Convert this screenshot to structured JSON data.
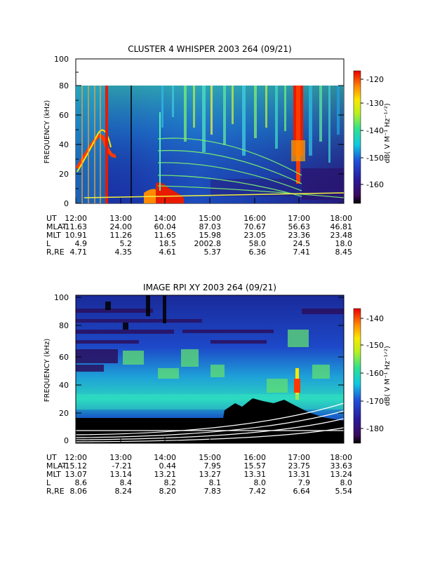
{
  "chart_data": [
    {
      "type": "heatmap",
      "title": "CLUSTER 4 WHISPER 2003 264 (09/21)",
      "ylabel": "FREQUENCY (kHz)",
      "ylim": [
        0,
        100
      ],
      "yticks": [
        "0",
        "20",
        "40",
        "60",
        "80",
        "100"
      ],
      "xticks": [
        "12:00",
        "13:00",
        "14:00",
        "15:00",
        "16:00",
        "17:00",
        "18:00"
      ],
      "colorbar": {
        "label": "dB( V M⁻¹ Hz⁻¹ᐟ²)",
        "range": [
          -165,
          -118
        ],
        "ticks": [
          "-120",
          "-130",
          "-140",
          "-150",
          "-160"
        ]
      },
      "ephemeris": [
        {
          "label": "UT",
          "values": [
            "12:00",
            "13:00",
            "14:00",
            "15:00",
            "16:00",
            "17:00",
            "18:00"
          ]
        },
        {
          "label": "MLAT",
          "values": [
            "-11.63",
            "24.00",
            "60.04",
            "87.03",
            "70.67",
            "56.63",
            "46.81"
          ]
        },
        {
          "label": "MLT",
          "values": [
            "10.91",
            "11.26",
            "11.65",
            "15.98",
            "23.05",
            "23.36",
            "23.48"
          ]
        },
        {
          "label": "L",
          "values": [
            "4.9",
            "5.2",
            "18.5",
            "2002.8",
            "58.0",
            "24.5",
            "18.0"
          ]
        },
        {
          "label": "R,RE",
          "values": [
            "4.71",
            "4.35",
            "4.61",
            "5.37",
            "6.36",
            "7.41",
            "8.45"
          ]
        }
      ]
    },
    {
      "type": "heatmap",
      "title": "IMAGE RPI XY 2003 264 (09/21)",
      "ylabel": "FREQUENCY (kHz)",
      "ylim": [
        0,
        100
      ],
      "yticks": [
        "0",
        "20",
        "40",
        "60",
        "80",
        "100"
      ],
      "xticks": [
        "12:00",
        "13:00",
        "14:00",
        "15:00",
        "16:00",
        "17:00",
        "18:00"
      ],
      "colorbar": {
        "label": "dB( V M⁻¹ Hz⁻¹ᐟ²)",
        "range": [
          -185,
          -135
        ],
        "ticks": [
          "-140",
          "-150",
          "-160",
          "-170",
          "-180"
        ]
      },
      "ephemeris": [
        {
          "label": "UT",
          "values": [
            "12:00",
            "13:00",
            "14:00",
            "15:00",
            "16:00",
            "17:00",
            "18:00"
          ]
        },
        {
          "label": "MLAT",
          "values": [
            "-15.12",
            "-7.21",
            "0.44",
            "7.95",
            "15.57",
            "23.75",
            "33.63"
          ]
        },
        {
          "label": "MLT",
          "values": [
            "13.07",
            "13.14",
            "13.21",
            "13.27",
            "13.31",
            "13.31",
            "13.24"
          ]
        },
        {
          "label": "L",
          "values": [
            "8.6",
            "8.4",
            "8.2",
            "8.1",
            "8.0",
            "7.9",
            "8.0"
          ]
        },
        {
          "label": "R,RE",
          "values": [
            "8.06",
            "8.24",
            "8.20",
            "7.83",
            "7.42",
            "6.64",
            "5.54"
          ]
        }
      ]
    }
  ]
}
